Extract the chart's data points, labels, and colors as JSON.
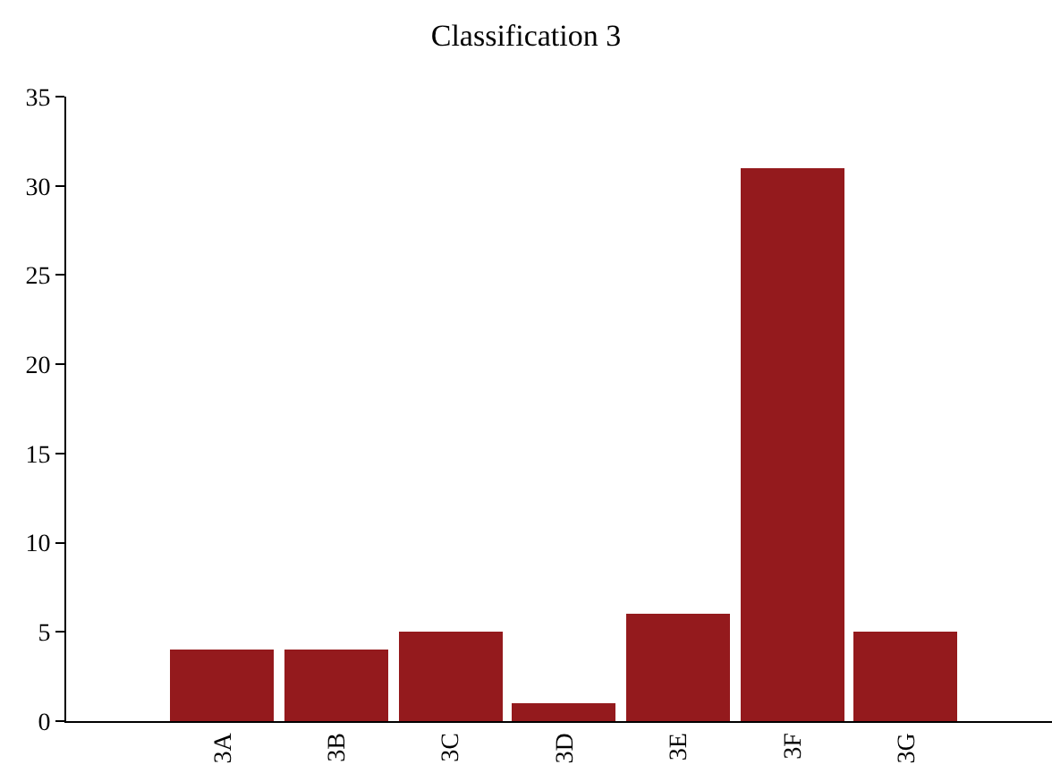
{
  "chart_data": {
    "type": "bar",
    "title": "Classification 3",
    "categories": [
      "3A",
      "3B",
      "3C",
      "3D",
      "3E",
      "3F",
      "3G"
    ],
    "values": [
      4,
      4,
      5,
      1,
      6,
      31,
      5
    ],
    "color": "#941a1d",
    "ylim": [
      0,
      35
    ],
    "yticks": [
      0,
      5,
      10,
      15,
      20,
      25,
      30,
      35
    ],
    "grid": false
  }
}
